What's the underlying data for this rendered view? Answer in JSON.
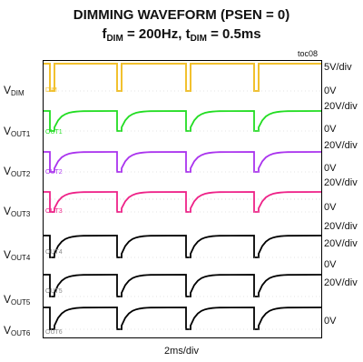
{
  "title": "DIMMING WAVEFORM (PSEN = 0)",
  "subtitle": {
    "f": "f",
    "f_sub": "DIM",
    "f_val": " = 200Hz, ",
    "t": "t",
    "t_sub": "DIM",
    "t_val": " = 0.5ms"
  },
  "figure_id": "toc08",
  "chart_data": {
    "type": "line",
    "xlabel": "2ms/div",
    "x_divisions": 10,
    "y_divisions": 10,
    "grid": false,
    "pwm_frequency_hz": 200,
    "pulse_width_ms": 0.5,
    "channels": [
      {
        "name": "V",
        "sub": "DIM",
        "scale": "5V/div",
        "ground": "0V",
        "color": "#f2c12e",
        "inner_label": "DIM"
      },
      {
        "name": "V",
        "sub": "OUT1",
        "scale": "20V/div",
        "ground": "0V",
        "color": "#22dd22",
        "inner_label": "OUT1"
      },
      {
        "name": "V",
        "sub": "OUT2",
        "scale": "20V/div",
        "ground": "0V",
        "color": "#aa33ee",
        "inner_label": "OUT2"
      },
      {
        "name": "V",
        "sub": "OUT3",
        "scale": "20V/div",
        "ground": "0V",
        "color": "#ee2288",
        "inner_label": "OUT3"
      },
      {
        "name": "V",
        "sub": "OUT4",
        "scale": "20V/div",
        "ground": "0V",
        "color": "#000000",
        "inner_label": "OUT4"
      },
      {
        "name": "V",
        "sub": "OUT5",
        "scale": "20V/div",
        "ground": "0V",
        "color": "#000000",
        "inner_label": "OUT5"
      },
      {
        "name": "V",
        "sub": "OUT6",
        "scale": "",
        "ground": "0V",
        "color": "#000000",
        "inner_label": "OUT6"
      }
    ],
    "right_scale_labels": [
      "5V/div",
      "0V",
      "20V/div",
      "0V",
      "20V/div",
      "0V",
      "20V/div",
      "0V",
      "20V/div",
      "20V/div",
      "0V",
      "20V/div",
      "0V"
    ]
  }
}
